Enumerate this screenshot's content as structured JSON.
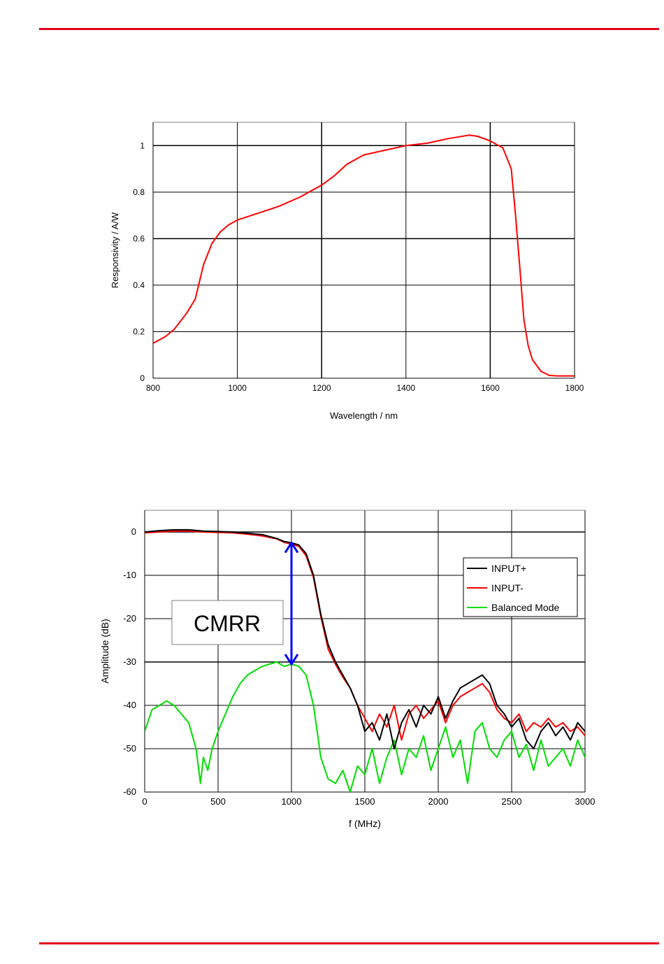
{
  "page": {
    "rule_color": "#e3001b"
  },
  "chart_data": [
    {
      "type": "line",
      "title": "",
      "xlabel": "Wavelength / nm",
      "ylabel": "Responsivity / A/W",
      "xlim": [
        800,
        1800
      ],
      "ylim": [
        0,
        1.1
      ],
      "xticks": [
        800,
        1000,
        1200,
        1400,
        1600,
        1800
      ],
      "yticks": [
        0,
        0.2,
        0.4,
        0.6,
        0.8,
        1
      ],
      "grid": true,
      "series": [
        {
          "color": "#ff0000",
          "x": [
            800,
            830,
            850,
            880,
            900,
            920,
            940,
            960,
            980,
            1000,
            1050,
            1100,
            1150,
            1200,
            1230,
            1260,
            1300,
            1350,
            1400,
            1450,
            1500,
            1550,
            1570,
            1600,
            1630,
            1650,
            1660,
            1670,
            1680,
            1690,
            1700,
            1720,
            1740,
            1760,
            1800
          ],
          "y": [
            0.15,
            0.18,
            0.21,
            0.28,
            0.34,
            0.49,
            0.58,
            0.63,
            0.66,
            0.68,
            0.71,
            0.74,
            0.78,
            0.83,
            0.87,
            0.92,
            0.96,
            0.98,
            1.0,
            1.01,
            1.03,
            1.045,
            1.04,
            1.02,
            0.99,
            0.9,
            0.7,
            0.48,
            0.25,
            0.14,
            0.08,
            0.03,
            0.012,
            0.01,
            0.01
          ]
        }
      ]
    },
    {
      "type": "line",
      "title": "",
      "xlabel": "f (MHz)",
      "ylabel": "Amplitude (dB)",
      "xlim": [
        0,
        3000
      ],
      "ylim": [
        -60,
        5
      ],
      "xticks": [
        0,
        500,
        1000,
        1500,
        2000,
        2500,
        3000
      ],
      "yticks": [
        0,
        -10,
        -20,
        -30,
        -40,
        -50,
        -60
      ],
      "grid": true,
      "legend": "right",
      "annotation": {
        "text": "CMRR",
        "arrow_x": 1000,
        "arrow_from": -30.5,
        "arrow_to": -2.5,
        "arrow_color": "#0000ff"
      },
      "series": [
        {
          "name": "INPUT+",
          "color": "#000000",
          "x": [
            0,
            100,
            200,
            300,
            400,
            500,
            600,
            700,
            800,
            900,
            950,
            1000,
            1050,
            1100,
            1150,
            1200,
            1250,
            1300,
            1350,
            1400,
            1450,
            1500,
            1550,
            1600,
            1650,
            1700,
            1750,
            1800,
            1850,
            1900,
            1950,
            2000,
            2050,
            2100,
            2150,
            2200,
            2250,
            2300,
            2350,
            2400,
            2450,
            2500,
            2550,
            2600,
            2650,
            2700,
            2750,
            2800,
            2850,
            2900,
            2950,
            3000
          ],
          "y": [
            0,
            0.3,
            0.5,
            0.5,
            0.2,
            0.1,
            0,
            -0.3,
            -0.6,
            -1.5,
            -2.2,
            -2.5,
            -3.0,
            -5.0,
            -10.0,
            -19.0,
            -26.0,
            -30.0,
            -33.0,
            -36.0,
            -40.0,
            -46.0,
            -44.0,
            -48.0,
            -42.0,
            -50.0,
            -44.0,
            -41.0,
            -45.0,
            -40.0,
            -42.0,
            -38.0,
            -43.0,
            -39.0,
            -36.0,
            -35.0,
            -34.0,
            -33.0,
            -35.0,
            -40.0,
            -42.0,
            -45.0,
            -43.0,
            -48.0,
            -50.0,
            -46.0,
            -44.0,
            -47.0,
            -45.0,
            -48.0,
            -44.0,
            -46.0
          ]
        },
        {
          "name": "INPUT-",
          "color": "#ff0000",
          "x": [
            0,
            100,
            200,
            300,
            400,
            500,
            600,
            700,
            800,
            900,
            950,
            1000,
            1050,
            1100,
            1150,
            1200,
            1250,
            1300,
            1350,
            1400,
            1450,
            1500,
            1550,
            1600,
            1650,
            1700,
            1750,
            1800,
            1850,
            1900,
            1950,
            2000,
            2050,
            2100,
            2150,
            2200,
            2250,
            2300,
            2350,
            2400,
            2450,
            2500,
            2550,
            2600,
            2650,
            2700,
            2750,
            2800,
            2850,
            2900,
            2950,
            3000
          ],
          "y": [
            -0.2,
            0,
            0.2,
            0.2,
            0,
            -0.1,
            -0.2,
            -0.5,
            -0.9,
            -1.6,
            -2.4,
            -2.8,
            -3.3,
            -5.5,
            -10.5,
            -19.5,
            -27.0,
            -30.5,
            -33.5,
            -36.0,
            -40.0,
            -43.0,
            -46.0,
            -42.0,
            -45.0,
            -40.0,
            -48.0,
            -42.0,
            -40.0,
            -43.0,
            -41.0,
            -39.0,
            -44.0,
            -40.0,
            -38.0,
            -37.0,
            -36.0,
            -35.0,
            -37.0,
            -41.0,
            -43.0,
            -44.0,
            -42.0,
            -46.0,
            -44.0,
            -45.0,
            -43.0,
            -45.0,
            -44.0,
            -46.0,
            -45.0,
            -47.0
          ]
        },
        {
          "name": "Balanced Mode",
          "color": "#00dd00",
          "x": [
            0,
            50,
            100,
            150,
            200,
            250,
            300,
            350,
            380,
            400,
            430,
            460,
            500,
            550,
            600,
            650,
            700,
            750,
            800,
            850,
            900,
            950,
            1000,
            1050,
            1100,
            1150,
            1200,
            1250,
            1300,
            1350,
            1400,
            1450,
            1500,
            1550,
            1600,
            1650,
            1700,
            1750,
            1800,
            1850,
            1900,
            1950,
            2000,
            2050,
            2100,
            2150,
            2200,
            2250,
            2300,
            2350,
            2400,
            2450,
            2500,
            2550,
            2600,
            2650,
            2700,
            2750,
            2800,
            2850,
            2900,
            2950,
            3000
          ],
          "y": [
            -46.0,
            -41.0,
            -40.0,
            -39.0,
            -40.0,
            -42.0,
            -44.0,
            -50.0,
            -58.0,
            -52.0,
            -55.0,
            -50.0,
            -46.0,
            -42.0,
            -38.0,
            -35.0,
            -33.0,
            -32.0,
            -31.0,
            -30.5,
            -30.0,
            -31.0,
            -30.5,
            -31.0,
            -33.0,
            -40.0,
            -52.0,
            -57.0,
            -58.0,
            -55.0,
            -60.0,
            -54.0,
            -56.0,
            -50.0,
            -58.0,
            -52.0,
            -48.0,
            -56.0,
            -50.0,
            -52.0,
            -47.0,
            -55.0,
            -50.0,
            -45.0,
            -52.0,
            -48.0,
            -58.0,
            -46.0,
            -44.0,
            -50.0,
            -52.0,
            -48.0,
            -46.0,
            -52.0,
            -49.0,
            -55.0,
            -48.0,
            -54.0,
            -52.0,
            -50.0,
            -54.0,
            -48.0,
            -52.0
          ]
        }
      ]
    }
  ]
}
